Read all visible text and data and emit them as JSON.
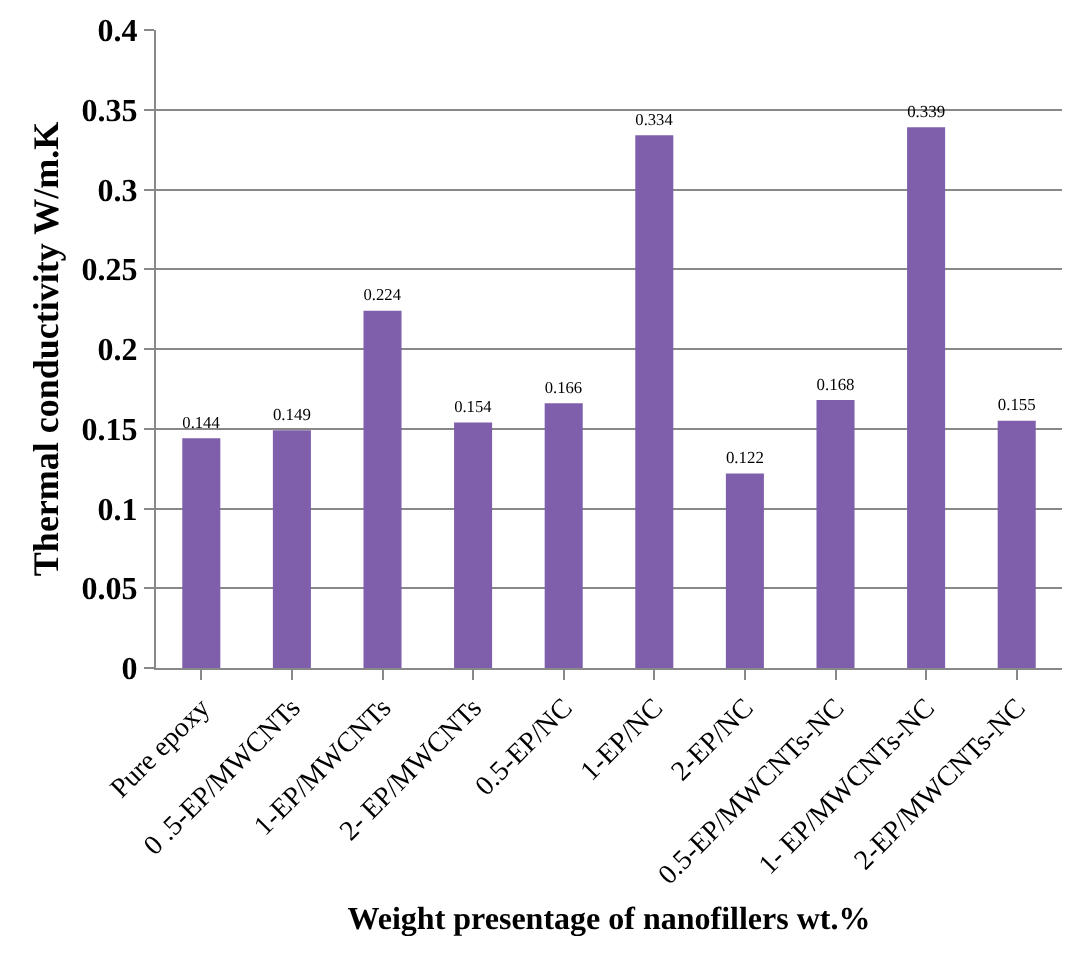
{
  "chart_data": {
    "type": "bar",
    "xlabel": "Weight presentage of nanofillers wt.%",
    "ylabel": "Thermal conductivity W/m.K",
    "categories": [
      "Pure epoxy",
      "0 .5-EP/MWCNTs",
      "1-EP/MWCNTs",
      "2- EP/MWCNTs",
      "0.5-EP/NC",
      "1-EP/NC",
      "2-EP/NC",
      "0.5-EP/MWCNTs-NC",
      "1- EP/MWCNTs-NC",
      "2-EP/MWCNTs-NC"
    ],
    "values": [
      0.144,
      0.149,
      0.224,
      0.154,
      0.166,
      0.334,
      0.122,
      0.168,
      0.339,
      0.155
    ],
    "color": "#7f5fab",
    "ylim": [
      0,
      0.4
    ],
    "yticks": [
      0,
      {
        "value": 0.05,
        "label": "0.05"
      },
      {
        "value": 0.1,
        "label": "0.1"
      },
      {
        "value": 0.15,
        "label": "0.15"
      },
      {
        "value": 0.2,
        "label": "0.2"
      },
      {
        "value": 0.25,
        "label": "0.25"
      },
      {
        "value": 0.3,
        "label": "0.3"
      },
      {
        "value": 0.35,
        "label": "0.35"
      },
      {
        "value": 0.4,
        "label": "0.4"
      }
    ],
    "grid": "y",
    "data_labels": true
  }
}
